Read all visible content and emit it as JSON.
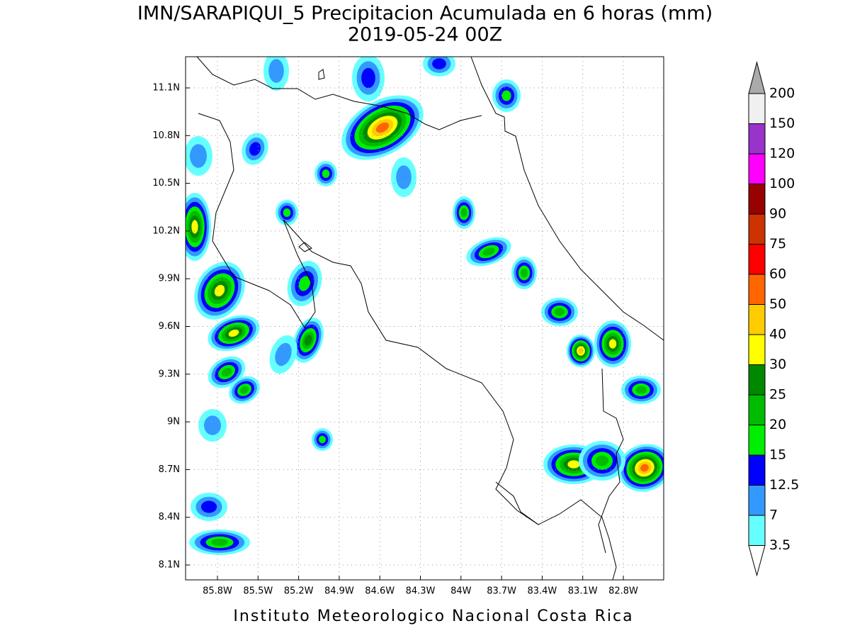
{
  "title": "IMN/SARAPIQUI_5 Precipitacion Acumulada en 6 horas (mm)",
  "subtitle": "2019-05-24 00Z",
  "lat_labels": [
    "11.1N",
    "10.8N",
    "10.5N",
    "10.2N",
    "9.9N",
    "9.6N",
    "9.3N",
    "9N",
    "8.7N",
    "8.4N",
    "8.1N"
  ],
  "lon_labels": [
    "85.8W",
    "85.5W",
    "85.2W",
    "84.9W",
    "84.6W",
    "84.3W",
    "84W",
    "83.7W",
    "83.4W",
    "83.1W",
    "82.8W"
  ],
  "colorbar": {
    "labels": [
      200,
      150,
      120,
      100,
      90,
      75,
      60,
      50,
      40,
      30,
      25,
      20,
      15,
      12.5,
      7,
      3.5
    ],
    "colors": [
      "#f0f0f0",
      "#9933cc",
      "#ff00ff",
      "#990000",
      "#cc3300",
      "#ff0000",
      "#ff6600",
      "#ffcc00",
      "#ffff00",
      "#008800",
      "#00bb00",
      "#00ee00",
      "#0000ff",
      "#3399ff",
      "#66ffff"
    ],
    "above_color": "#aaaaaa",
    "below_color": "#ffffff"
  },
  "footer": "Instituto Meteorologico Nacional Costa Rica"
}
